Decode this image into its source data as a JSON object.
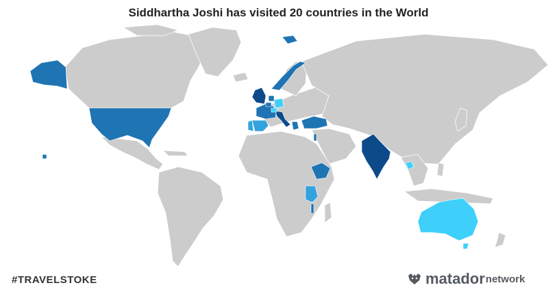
{
  "title": "Siddhartha Joshi has visited 20 countries in the World",
  "hashtag": "#TRAVELSTOKE",
  "brand": {
    "name": "matador",
    "suffix": "network",
    "icon": "matador-bull-icon"
  },
  "colors": {
    "land": "#cccccc",
    "level_1": "#3ed0fb",
    "level_2": "#33a3dd",
    "level_3": "#1f74b3",
    "level_4": "#0d4a8a"
  },
  "visited_countries": [
    {
      "name": "United States",
      "color": "#1f74b3"
    },
    {
      "name": "Australia",
      "color": "#3ed0fb"
    },
    {
      "name": "India",
      "color": "#0d4a8a"
    },
    {
      "name": "United Kingdom",
      "color": "#0d4a8a"
    },
    {
      "name": "Norway",
      "color": "#1f74b3"
    },
    {
      "name": "France",
      "color": "#1f74b3"
    },
    {
      "name": "Spain",
      "color": "#33a3dd"
    },
    {
      "name": "Portugal",
      "color": "#33a3dd"
    },
    {
      "name": "Italy",
      "color": "#0d4a8a"
    },
    {
      "name": "Switzerland",
      "color": "#3ed0fb"
    },
    {
      "name": "Germany",
      "color": "#3ed0fb"
    },
    {
      "name": "Netherlands",
      "color": "#1f74b3"
    },
    {
      "name": "Belgium",
      "color": "#1f74b3"
    },
    {
      "name": "Greece",
      "color": "#1f74b3"
    },
    {
      "name": "Turkey",
      "color": "#1f74b3"
    },
    {
      "name": "Israel",
      "color": "#1f74b3"
    },
    {
      "name": "Ethiopia",
      "color": "#1f74b3"
    },
    {
      "name": "Tanzania",
      "color": "#33a3dd"
    },
    {
      "name": "Malawi",
      "color": "#1f74b3"
    },
    {
      "name": "Cambodia",
      "color": "#3ed0fb"
    }
  ]
}
